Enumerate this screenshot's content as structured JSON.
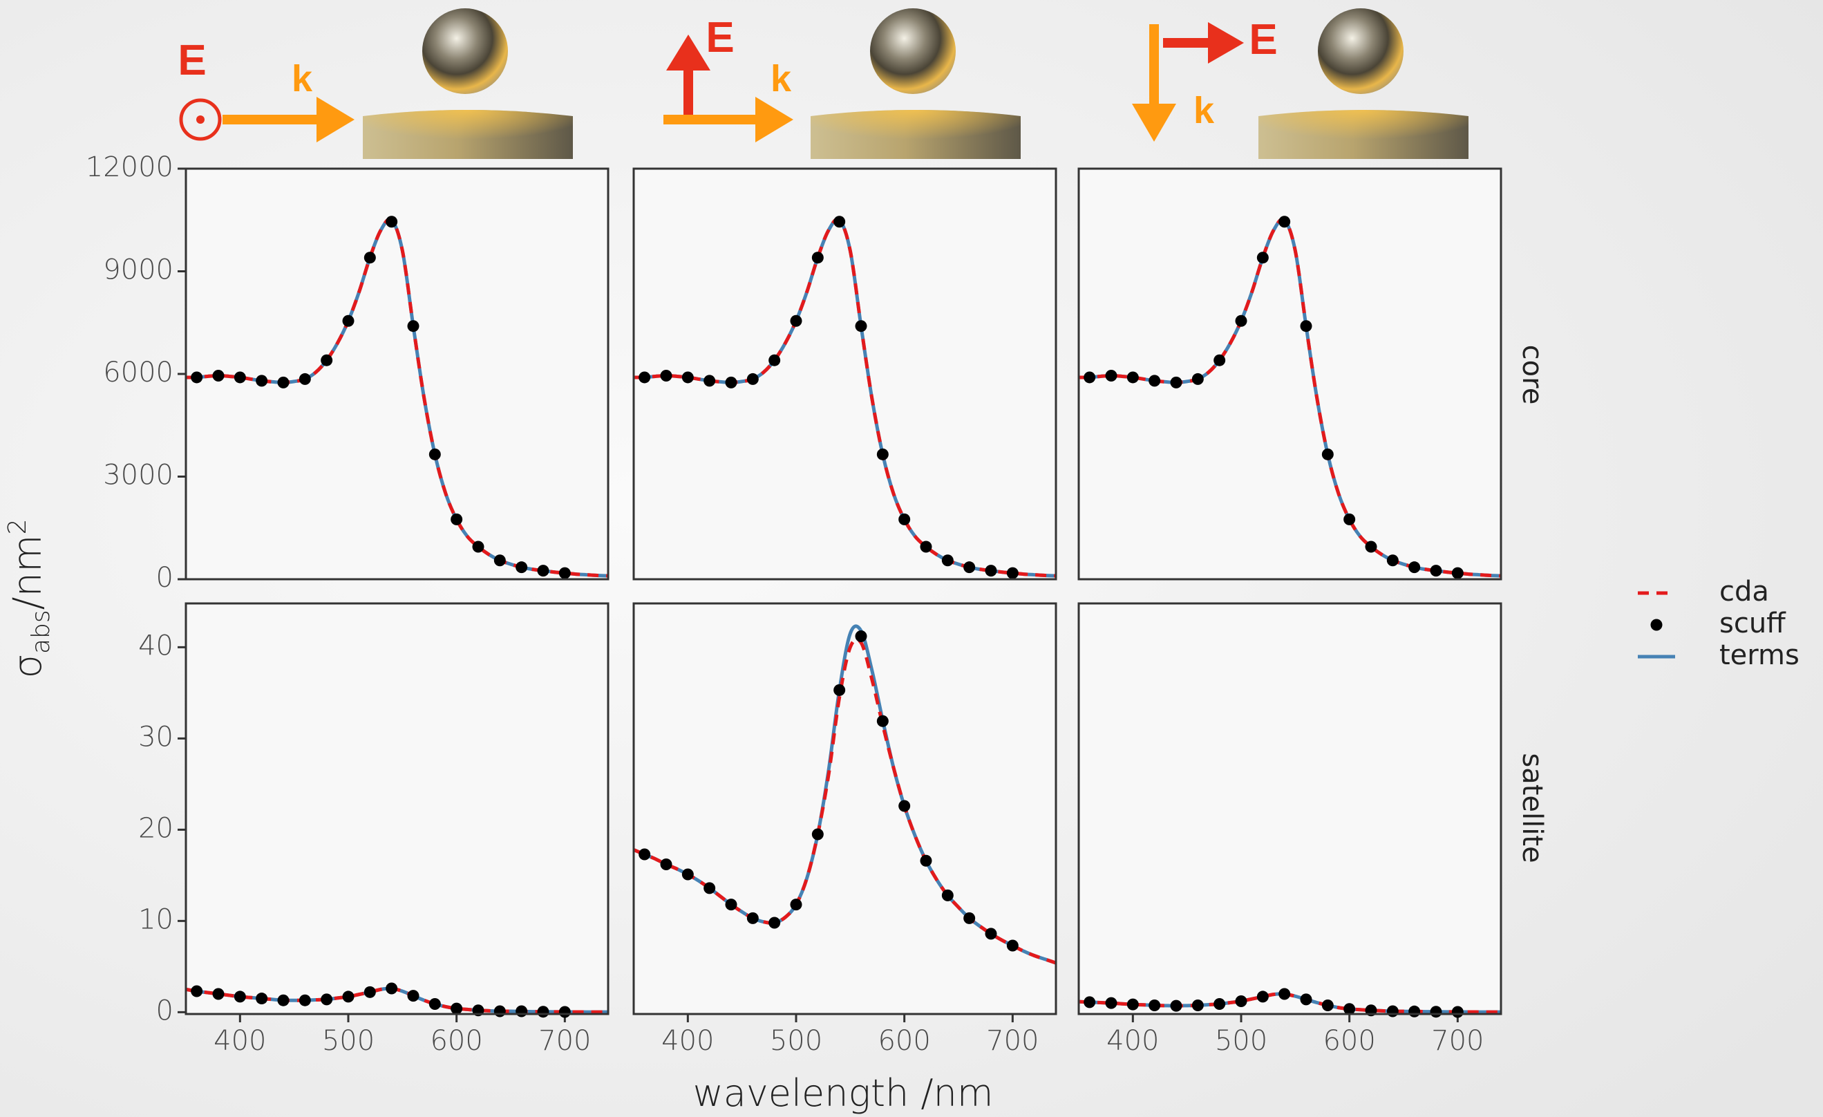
{
  "headers": [
    {
      "E": "E",
      "k": "k"
    },
    {
      "E": "E",
      "k": "k"
    },
    {
      "E": "E",
      "k": "k"
    }
  ],
  "facets": {
    "rows": [
      "core",
      "satellite"
    ]
  },
  "axis_labels": {
    "y": {
      "symbol": "σ",
      "sub": "abs",
      "unit": "/nm",
      "sup": "2"
    },
    "x": "wavelength /nm"
  },
  "chart_data": [
    {
      "type": "line",
      "xlim": [
        350,
        740
      ],
      "ylim": [
        0,
        12000
      ],
      "yticks": [
        0,
        3000,
        6000,
        9000,
        12000
      ],
      "x": [
        350,
        360,
        370,
        380,
        390,
        400,
        410,
        420,
        430,
        440,
        450,
        460,
        470,
        480,
        490,
        500,
        510,
        520,
        530,
        540,
        550,
        560,
        570,
        580,
        590,
        600,
        610,
        620,
        630,
        640,
        650,
        660,
        670,
        680,
        690,
        700,
        710,
        720,
        730,
        740
      ],
      "series": [
        {
          "name": "cda",
          "color": "#e31a1c",
          "style": "dashed",
          "values": [
            5900,
            5900,
            5930,
            5950,
            5930,
            5900,
            5850,
            5800,
            5770,
            5750,
            5780,
            5850,
            6050,
            6400,
            6900,
            7550,
            8400,
            9400,
            10200,
            10500,
            9600,
            7400,
            5300,
            3650,
            2500,
            1750,
            1250,
            950,
            720,
            550,
            440,
            350,
            290,
            250,
            210,
            180,
            150,
            130,
            110,
            100
          ]
        },
        {
          "name": "scuff",
          "color": "#000000",
          "style": "points",
          "x": [
            360,
            380,
            400,
            420,
            440,
            460,
            480,
            500,
            520,
            540,
            560,
            580,
            600,
            620,
            640,
            660,
            680,
            700
          ],
          "values": [
            5900,
            5950,
            5900,
            5800,
            5750,
            5850,
            6400,
            7550,
            9400,
            10450,
            7400,
            3650,
            1750,
            950,
            550,
            350,
            250,
            180
          ]
        },
        {
          "name": "terms",
          "color": "#4682b4",
          "style": "solid",
          "values": [
            5900,
            5900,
            5930,
            5950,
            5930,
            5900,
            5850,
            5800,
            5770,
            5750,
            5780,
            5850,
            6050,
            6400,
            6900,
            7550,
            8400,
            9400,
            10200,
            10500,
            9600,
            7400,
            5300,
            3650,
            2500,
            1750,
            1250,
            950,
            720,
            550,
            440,
            350,
            290,
            250,
            210,
            180,
            150,
            130,
            110,
            100
          ]
        }
      ]
    },
    {
      "type": "line",
      "xlim": [
        350,
        740
      ],
      "ylim": [
        0,
        12000
      ],
      "x": [
        350,
        360,
        370,
        380,
        390,
        400,
        410,
        420,
        430,
        440,
        450,
        460,
        470,
        480,
        490,
        500,
        510,
        520,
        530,
        540,
        550,
        560,
        570,
        580,
        590,
        600,
        610,
        620,
        630,
        640,
        650,
        660,
        670,
        680,
        690,
        700,
        710,
        720,
        730,
        740
      ],
      "series": [
        {
          "name": "cda",
          "color": "#e31a1c",
          "style": "dashed",
          "values": [
            5900,
            5900,
            5930,
            5950,
            5930,
            5900,
            5850,
            5800,
            5770,
            5750,
            5780,
            5850,
            6050,
            6400,
            6900,
            7550,
            8400,
            9400,
            10200,
            10500,
            9600,
            7400,
            5300,
            3650,
            2500,
            1750,
            1250,
            950,
            720,
            550,
            440,
            350,
            290,
            250,
            210,
            180,
            150,
            130,
            110,
            100
          ]
        },
        {
          "name": "scuff",
          "color": "#000000",
          "style": "points",
          "x": [
            360,
            380,
            400,
            420,
            440,
            460,
            480,
            500,
            520,
            540,
            560,
            580,
            600,
            620,
            640,
            660,
            680,
            700
          ],
          "values": [
            5900,
            5950,
            5900,
            5800,
            5750,
            5850,
            6400,
            7550,
            9400,
            10450,
            7400,
            3650,
            1750,
            950,
            550,
            350,
            250,
            180
          ]
        },
        {
          "name": "terms",
          "color": "#4682b4",
          "style": "solid",
          "values": [
            5900,
            5900,
            5930,
            5950,
            5930,
            5900,
            5850,
            5800,
            5770,
            5750,
            5780,
            5850,
            6050,
            6400,
            6900,
            7550,
            8400,
            9400,
            10200,
            10500,
            9600,
            7400,
            5300,
            3650,
            2500,
            1750,
            1250,
            950,
            720,
            550,
            440,
            350,
            290,
            250,
            210,
            180,
            150,
            130,
            110,
            100
          ]
        }
      ]
    },
    {
      "type": "line",
      "xlim": [
        350,
        740
      ],
      "ylim": [
        0,
        12000
      ],
      "x": [
        350,
        360,
        370,
        380,
        390,
        400,
        410,
        420,
        430,
        440,
        450,
        460,
        470,
        480,
        490,
        500,
        510,
        520,
        530,
        540,
        550,
        560,
        570,
        580,
        590,
        600,
        610,
        620,
        630,
        640,
        650,
        660,
        670,
        680,
        690,
        700,
        710,
        720,
        730,
        740
      ],
      "series": [
        {
          "name": "cda",
          "color": "#e31a1c",
          "style": "dashed",
          "values": [
            5900,
            5900,
            5930,
            5950,
            5930,
            5900,
            5850,
            5800,
            5770,
            5750,
            5780,
            5850,
            6050,
            6400,
            6900,
            7550,
            8400,
            9400,
            10200,
            10500,
            9600,
            7400,
            5300,
            3650,
            2500,
            1750,
            1250,
            950,
            720,
            550,
            440,
            350,
            290,
            250,
            210,
            180,
            150,
            130,
            110,
            100
          ]
        },
        {
          "name": "scuff",
          "color": "#000000",
          "style": "points",
          "x": [
            360,
            380,
            400,
            420,
            440,
            460,
            480,
            500,
            520,
            540,
            560,
            580,
            600,
            620,
            640,
            660,
            680,
            700
          ],
          "values": [
            5900,
            5950,
            5900,
            5800,
            5750,
            5850,
            6400,
            7550,
            9400,
            10450,
            7400,
            3650,
            1750,
            950,
            550,
            350,
            250,
            180
          ]
        },
        {
          "name": "terms",
          "color": "#4682b4",
          "style": "solid",
          "values": [
            5900,
            5900,
            5930,
            5950,
            5930,
            5900,
            5850,
            5800,
            5770,
            5750,
            5780,
            5850,
            6050,
            6400,
            6900,
            7550,
            8400,
            9400,
            10200,
            10500,
            9600,
            7400,
            5300,
            3650,
            2500,
            1750,
            1250,
            950,
            720,
            550,
            440,
            350,
            290,
            250,
            210,
            180,
            150,
            130,
            110,
            100
          ]
        }
      ]
    },
    {
      "type": "line",
      "xlim": [
        350,
        740
      ],
      "ylim": [
        -0.2,
        44.8
      ],
      "yticks": [
        0,
        10,
        20,
        30,
        40
      ],
      "xticks": [
        400,
        500,
        600,
        700
      ],
      "x": [
        350,
        360,
        370,
        380,
        390,
        400,
        410,
        420,
        430,
        440,
        450,
        460,
        470,
        480,
        490,
        500,
        510,
        520,
        530,
        540,
        550,
        560,
        570,
        580,
        590,
        600,
        610,
        620,
        630,
        640,
        650,
        660,
        670,
        680,
        690,
        700,
        710,
        720,
        730,
        740
      ],
      "series": [
        {
          "name": "cda",
          "color": "#e31a1c",
          "style": "dashed",
          "values": [
            2.5,
            2.3,
            2.15,
            2.0,
            1.85,
            1.7,
            1.6,
            1.5,
            1.4,
            1.3,
            1.3,
            1.3,
            1.35,
            1.4,
            1.55,
            1.7,
            1.95,
            2.2,
            2.5,
            2.6,
            2.3,
            1.8,
            1.3,
            0.9,
            0.6,
            0.4,
            0.3,
            0.2,
            0.15,
            0.1,
            0.1,
            0.08,
            0.06,
            0.05,
            0.04,
            0.03,
            0.03,
            0.02,
            0.02,
            0.02
          ]
        },
        {
          "name": "scuff",
          "color": "#000000",
          "style": "points",
          "x": [
            360,
            380,
            400,
            420,
            440,
            460,
            480,
            500,
            520,
            540,
            560,
            580,
            600,
            620,
            640,
            660,
            680,
            700
          ],
          "values": [
            2.3,
            2.0,
            1.7,
            1.5,
            1.3,
            1.3,
            1.4,
            1.7,
            2.2,
            2.6,
            1.8,
            0.9,
            0.4,
            0.2,
            0.1,
            0.1,
            0.05,
            0.03
          ]
        },
        {
          "name": "terms",
          "color": "#4682b4",
          "style": "solid",
          "values": [
            2.5,
            2.3,
            2.15,
            2.0,
            1.85,
            1.7,
            1.6,
            1.5,
            1.4,
            1.3,
            1.3,
            1.3,
            1.35,
            1.4,
            1.55,
            1.7,
            1.95,
            2.2,
            2.5,
            2.6,
            2.3,
            1.8,
            1.3,
            0.9,
            0.6,
            0.4,
            0.3,
            0.2,
            0.15,
            0.1,
            0.1,
            0.08,
            0.06,
            0.05,
            0.04,
            0.03,
            0.03,
            0.02,
            0.02,
            0.02
          ]
        }
      ]
    },
    {
      "type": "line",
      "xlim": [
        350,
        740
      ],
      "ylim": [
        -0.2,
        44.8
      ],
      "xticks": [
        400,
        500,
        600,
        700
      ],
      "x": [
        350,
        360,
        370,
        380,
        390,
        400,
        410,
        420,
        430,
        440,
        450,
        460,
        470,
        480,
        490,
        500,
        510,
        520,
        530,
        540,
        550,
        560,
        570,
        580,
        590,
        600,
        610,
        620,
        630,
        640,
        650,
        660,
        670,
        680,
        690,
        700,
        710,
        720,
        730,
        740
      ],
      "series": [
        {
          "name": "cda",
          "color": "#e31a1c",
          "style": "dashed",
          "values": [
            17.8,
            17.3,
            16.8,
            16.2,
            15.7,
            15.1,
            14.4,
            13.6,
            12.7,
            11.8,
            11.0,
            10.3,
            9.9,
            9.8,
            10.4,
            11.8,
            14.7,
            19.5,
            26.0,
            34.5,
            40.0,
            40.5,
            36.5,
            31.5,
            26.8,
            22.6,
            19.3,
            16.6,
            14.5,
            12.8,
            11.5,
            10.3,
            9.4,
            8.6,
            7.9,
            7.3,
            6.7,
            6.2,
            5.8,
            5.4
          ]
        },
        {
          "name": "scuff",
          "color": "#000000",
          "style": "points",
          "x": [
            360,
            380,
            400,
            420,
            440,
            460,
            480,
            500,
            520,
            540,
            560,
            580,
            600,
            620,
            640,
            660,
            680,
            700
          ],
          "values": [
            17.3,
            16.2,
            15.1,
            13.6,
            11.8,
            10.3,
            9.8,
            11.8,
            19.5,
            35.3,
            41.2,
            31.9,
            22.6,
            16.6,
            12.8,
            10.3,
            8.6,
            7.3
          ]
        },
        {
          "name": "terms",
          "color": "#4682b4",
          "style": "solid",
          "values": [
            17.8,
            17.3,
            16.8,
            16.2,
            15.7,
            15.1,
            14.4,
            13.6,
            12.7,
            11.8,
            11.0,
            10.3,
            9.9,
            9.8,
            10.4,
            11.8,
            14.7,
            19.5,
            26.5,
            35.3,
            41.5,
            41.8,
            37.5,
            32.0,
            26.8,
            22.6,
            19.3,
            16.6,
            14.5,
            12.8,
            11.5,
            10.3,
            9.4,
            8.6,
            7.9,
            7.3,
            6.7,
            6.2,
            5.8,
            5.4
          ]
        }
      ]
    },
    {
      "type": "line",
      "xlim": [
        350,
        740
      ],
      "ylim": [
        -0.2,
        44.8
      ],
      "xticks": [
        400,
        500,
        600,
        700
      ],
      "x": [
        350,
        360,
        370,
        380,
        390,
        400,
        410,
        420,
        430,
        440,
        450,
        460,
        470,
        480,
        490,
        500,
        510,
        520,
        530,
        540,
        550,
        560,
        570,
        580,
        590,
        600,
        610,
        620,
        630,
        640,
        650,
        660,
        670,
        680,
        690,
        700,
        710,
        720,
        730,
        740
      ],
      "series": [
        {
          "name": "cda",
          "color": "#e31a1c",
          "style": "dashed",
          "values": [
            1.15,
            1.1,
            1.05,
            1.0,
            0.92,
            0.85,
            0.8,
            0.75,
            0.72,
            0.7,
            0.72,
            0.75,
            0.82,
            0.9,
            1.05,
            1.2,
            1.45,
            1.7,
            1.95,
            2.0,
            1.75,
            1.4,
            1.05,
            0.75,
            0.5,
            0.35,
            0.27,
            0.2,
            0.15,
            0.1,
            0.09,
            0.08,
            0.06,
            0.05,
            0.04,
            0.03,
            0.03,
            0.02,
            0.02,
            0.02
          ]
        },
        {
          "name": "scuff",
          "color": "#000000",
          "style": "points",
          "x": [
            360,
            380,
            400,
            420,
            440,
            460,
            480,
            500,
            520,
            540,
            560,
            580,
            600,
            620,
            640,
            660,
            680,
            700
          ],
          "values": [
            1.1,
            1.0,
            0.85,
            0.75,
            0.7,
            0.75,
            0.9,
            1.2,
            1.7,
            2.0,
            1.4,
            0.75,
            0.35,
            0.2,
            0.1,
            0.08,
            0.05,
            0.03
          ]
        },
        {
          "name": "terms",
          "color": "#4682b4",
          "style": "solid",
          "values": [
            1.15,
            1.1,
            1.05,
            1.0,
            0.92,
            0.85,
            0.8,
            0.75,
            0.72,
            0.7,
            0.72,
            0.75,
            0.82,
            0.9,
            1.05,
            1.2,
            1.45,
            1.7,
            1.95,
            2.0,
            1.75,
            1.4,
            1.05,
            0.75,
            0.5,
            0.35,
            0.27,
            0.2,
            0.15,
            0.1,
            0.09,
            0.08,
            0.06,
            0.05,
            0.04,
            0.03,
            0.03,
            0.02,
            0.02,
            0.02
          ]
        }
      ]
    }
  ]
}
